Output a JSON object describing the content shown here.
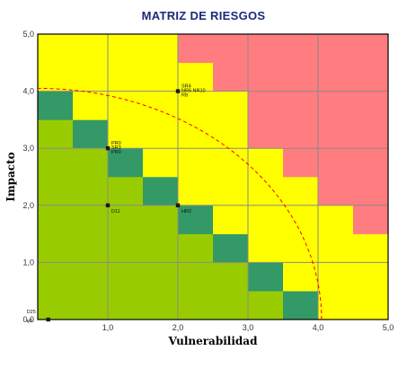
{
  "chart_data": {
    "type": "heatmap",
    "title": "MATRIZ DE RIESGOS",
    "xlabel": "Vulnerabilidad",
    "ylabel": "Impacto",
    "xlim": [
      0,
      5
    ],
    "ylim": [
      0,
      5
    ],
    "x_ticks": [
      "0,0",
      "1,0",
      "2,0",
      "3,0",
      "4,0",
      "5,0"
    ],
    "y_ticks": [
      "0,0",
      "1,0",
      "2,0",
      "3,0",
      "4,0",
      "5,0"
    ],
    "grid": true,
    "cell_size": 0.5,
    "zone_colors": {
      "low": "#99cc00",
      "diagonal": "#339966",
      "medium": "#ffff00",
      "high": "#ff7c80"
    },
    "diagonal_cells": [
      [
        0,
        7
      ],
      [
        1,
        6
      ],
      [
        2,
        5
      ],
      [
        3,
        4
      ],
      [
        4,
        3
      ],
      [
        5,
        2
      ],
      [
        6,
        1
      ],
      [
        7,
        0
      ]
    ],
    "high_rows": [
      {
        "row": 9,
        "from_col": 4
      },
      {
        "row": 8,
        "from_col": 5
      },
      {
        "row": 7,
        "from_col": 6
      },
      {
        "row": 6,
        "from_col": 6
      },
      {
        "row": 5,
        "from_col": 7
      },
      {
        "row": 4,
        "from_col": 8
      },
      {
        "row": 3,
        "from_col": 9
      }
    ],
    "medium_curve": {
      "radius": 4.05,
      "center": [
        0,
        0
      ],
      "style": "dashed",
      "color": "#ff0000"
    },
    "points": [
      {
        "x": 2.0,
        "y": 4.0,
        "labels": [
          "SR4",
          "NR6 NR10",
          "R8"
        ]
      },
      {
        "x": 1.0,
        "y": 3.0,
        "labels": [
          "PR0",
          "SR3",
          "PR0"
        ]
      },
      {
        "x": 1.0,
        "y": 2.0,
        "labels": [
          "D11"
        ]
      },
      {
        "x": 2.0,
        "y": 2.0,
        "labels": [
          "HR2"
        ]
      },
      {
        "x": 0.15,
        "y": 0.0,
        "labels": [
          "D25",
          "e0"
        ]
      }
    ]
  }
}
